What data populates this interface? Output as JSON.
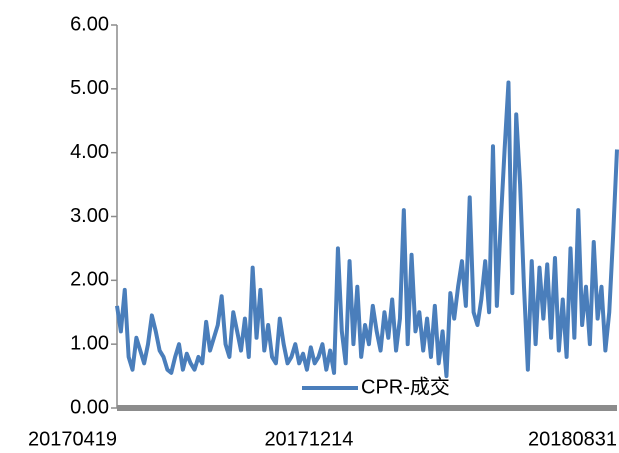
{
  "chart_data": {
    "type": "line",
    "categories": [
      "20170419",
      null,
      null,
      null,
      null,
      null,
      null,
      null,
      null,
      null,
      null,
      null,
      null,
      null,
      null,
      null,
      null,
      null,
      null,
      null,
      null,
      null,
      null,
      null,
      null,
      null,
      null,
      null,
      null,
      null,
      null,
      null,
      null,
      null,
      null,
      null,
      null,
      null,
      null,
      null,
      null,
      null,
      null,
      null,
      null,
      null,
      null,
      null,
      null,
      null,
      null,
      null,
      null,
      null,
      null,
      null,
      null,
      null,
      null,
      null,
      null,
      "20171214",
      null,
      null,
      null,
      null,
      null,
      null,
      null,
      null,
      null,
      null,
      null,
      null,
      null,
      null,
      null,
      null,
      null,
      null,
      null,
      null,
      null,
      null,
      null,
      null,
      null,
      null,
      null,
      null,
      null,
      null,
      null,
      null,
      null,
      null,
      null,
      null,
      null,
      null,
      null,
      null,
      null,
      null,
      null,
      null,
      null,
      null,
      null,
      null,
      null,
      null,
      null,
      null,
      null,
      null,
      null,
      null,
      null,
      null,
      null,
      null,
      null,
      null,
      null,
      null,
      null,
      null,
      null,
      "20180831"
    ],
    "series": [
      {
        "name": "CPR-成交",
        "color": "#4a7ebb",
        "values": [
          1.6,
          1.2,
          1.85,
          0.8,
          0.6,
          1.1,
          0.9,
          0.7,
          1.0,
          1.45,
          1.2,
          0.9,
          0.8,
          0.6,
          0.55,
          0.8,
          1.0,
          0.6,
          0.85,
          0.7,
          0.6,
          0.8,
          0.7,
          1.35,
          0.9,
          1.1,
          1.3,
          1.75,
          1.0,
          0.8,
          1.5,
          1.2,
          0.9,
          1.4,
          0.8,
          2.2,
          1.1,
          1.85,
          0.9,
          1.3,
          0.8,
          0.7,
          1.4,
          1.0,
          0.7,
          0.8,
          1.0,
          0.7,
          0.85,
          0.6,
          0.95,
          0.7,
          0.8,
          1.0,
          0.6,
          0.9,
          0.55,
          2.5,
          1.2,
          0.7,
          2.3,
          1.0,
          1.9,
          0.8,
          1.3,
          1.0,
          1.6,
          1.2,
          0.9,
          1.5,
          1.1,
          1.7,
          0.9,
          1.4,
          3.1,
          1.0,
          2.4,
          1.2,
          1.5,
          0.9,
          1.4,
          0.8,
          1.6,
          0.7,
          1.2,
          0.5,
          1.8,
          1.4,
          1.9,
          2.3,
          1.6,
          3.3,
          1.5,
          1.3,
          1.7,
          2.3,
          1.5,
          4.1,
          1.6,
          2.9,
          4.05,
          5.1,
          1.8,
          4.6,
          3.5,
          1.9,
          0.6,
          2.3,
          1.0,
          2.2,
          1.4,
          2.25,
          1.1,
          2.35,
          0.9,
          1.7,
          0.8,
          2.5,
          1.1,
          3.1,
          1.3,
          1.9,
          1.0,
          2.6,
          1.4,
          1.9,
          0.9,
          1.5,
          2.7,
          4.05
        ]
      }
    ],
    "ylim": [
      0,
      6
    ],
    "yticks": [
      {
        "value": 0,
        "label": "0.00"
      },
      {
        "value": 1,
        "label": "1.00"
      },
      {
        "value": 2,
        "label": "2.00"
      },
      {
        "value": 3,
        "label": "3.00"
      },
      {
        "value": 4,
        "label": "4.00"
      },
      {
        "value": 5,
        "label": "5.00"
      },
      {
        "value": 6,
        "label": "6.00"
      }
    ],
    "grid": false
  }
}
